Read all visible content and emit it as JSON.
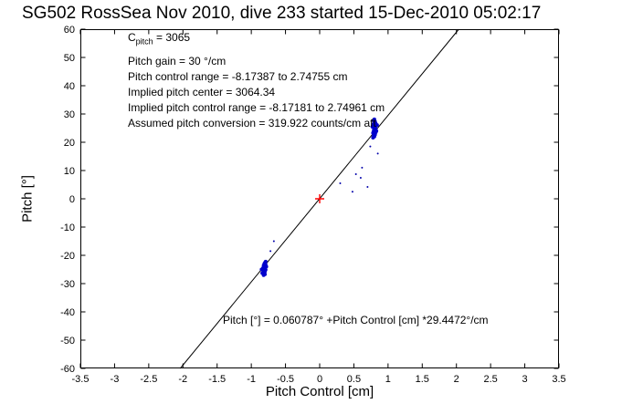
{
  "annotations": {
    "c_pitch": {
      "base": "C",
      "sub": "pitch",
      "rest": " = 3065"
    },
    "lines": [
      "Pitch gain = 30 °/cm",
      "Pitch control range = -8.17387 to 2.74755 cm",
      "Implied pitch center = 3064.34",
      "Implied pitch control range = -8.17181 to 2.74961 cm",
      "Assumed pitch conversion = 319.922 counts/cm aft"
    ],
    "fit_equation": "Pitch [°] = 0.060787° +Pitch Control [cm] *29.4472°/cm"
  },
  "chart_data": {
    "type": "scatter",
    "title": "SG502 RossSea Nov 2010, dive 233 started 15-Dec-2010 05:02:17",
    "xlabel": "Pitch Control [cm]",
    "ylabel": "Pitch [°]",
    "xlim": [
      -3.5,
      3.5
    ],
    "ylim": [
      -60,
      60
    ],
    "grid": false,
    "legend": "none",
    "xtick_values": [
      -3.5,
      -3,
      -2.5,
      -2,
      -1.5,
      -1,
      -0.5,
      0,
      0.5,
      1,
      1.5,
      2,
      2.5,
      3,
      3.5
    ],
    "xtick_labels": [
      "-3.5",
      "-3",
      "-2.5",
      "-2",
      "-1.5",
      "-1",
      "-0.5",
      "0",
      "0.5",
      "1",
      "1.5",
      "2",
      "2.5",
      "3",
      "3.5"
    ],
    "ytick_values": [
      -60,
      -50,
      -40,
      -30,
      -20,
      -10,
      0,
      10,
      20,
      30,
      40,
      50,
      60
    ],
    "ytick_labels": [
      "-60",
      "-50",
      "-40",
      "-30",
      "-20",
      "-10",
      "0",
      "10",
      "20",
      "30",
      "40",
      "50",
      "60"
    ],
    "fit_line": {
      "slope": 29.4472,
      "intercept": 0.060787,
      "color": "#000000"
    },
    "series": [
      {
        "name": "pitch-samples-up-cluster",
        "marker": "dot",
        "color": "#0000cc",
        "size": 2,
        "points": [
          [
            0.78,
            21.6
          ],
          [
            0.8,
            22.0
          ],
          [
            0.79,
            22.4
          ],
          [
            0.81,
            22.7
          ],
          [
            0.8,
            23.0
          ],
          [
            0.78,
            23.3
          ],
          [
            0.82,
            23.5
          ],
          [
            0.8,
            23.8
          ],
          [
            0.79,
            24.1
          ],
          [
            0.81,
            24.3
          ],
          [
            0.8,
            24.6
          ],
          [
            0.82,
            24.9
          ],
          [
            0.79,
            25.1
          ],
          [
            0.8,
            25.4
          ],
          [
            0.81,
            25.7
          ],
          [
            0.8,
            26.0
          ],
          [
            0.78,
            26.3
          ],
          [
            0.82,
            26.6
          ],
          [
            0.8,
            26.9
          ],
          [
            0.81,
            27.3
          ],
          [
            0.79,
            27.7
          ],
          [
            0.8,
            28.1
          ],
          [
            0.83,
            24.0
          ],
          [
            0.77,
            25.5
          ],
          [
            0.84,
            26.1
          ]
        ]
      },
      {
        "name": "pitch-samples-down-cluster",
        "marker": "dot",
        "color": "#0000cc",
        "size": 2,
        "points": [
          [
            -0.8,
            -22.6
          ],
          [
            -0.81,
            -23.0
          ],
          [
            -0.79,
            -23.3
          ],
          [
            -0.82,
            -23.6
          ],
          [
            -0.8,
            -23.9
          ],
          [
            -0.81,
            -24.2
          ],
          [
            -0.83,
            -24.5
          ],
          [
            -0.8,
            -24.8
          ],
          [
            -0.79,
            -25.1
          ],
          [
            -0.82,
            -25.4
          ],
          [
            -0.8,
            -25.7
          ],
          [
            -0.81,
            -26.0
          ],
          [
            -0.84,
            -26.3
          ],
          [
            -0.8,
            -26.7
          ],
          [
            -0.78,
            -24.0
          ],
          [
            -0.85,
            -25.0
          ],
          [
            -0.82,
            -27.0
          ],
          [
            -0.79,
            -22.2
          ]
        ]
      },
      {
        "name": "pitch-samples-sparse",
        "marker": "dot",
        "color": "#0000aa",
        "size": 1,
        "points": [
          [
            0.53,
            8.7
          ],
          [
            0.6,
            7.4
          ],
          [
            0.7,
            4.2
          ],
          [
            0.85,
            16.0
          ],
          [
            0.62,
            11.0
          ],
          [
            0.48,
            2.5
          ],
          [
            0.74,
            18.5
          ],
          [
            0.3,
            5.5
          ],
          [
            -0.67,
            -15.0
          ],
          [
            -0.72,
            -18.5
          ]
        ]
      },
      {
        "name": "implied-pitch-center-marker",
        "marker": "plus",
        "color": "#ff0000",
        "size": 5,
        "points": [
          [
            0.0,
            0.0
          ]
        ]
      }
    ]
  }
}
